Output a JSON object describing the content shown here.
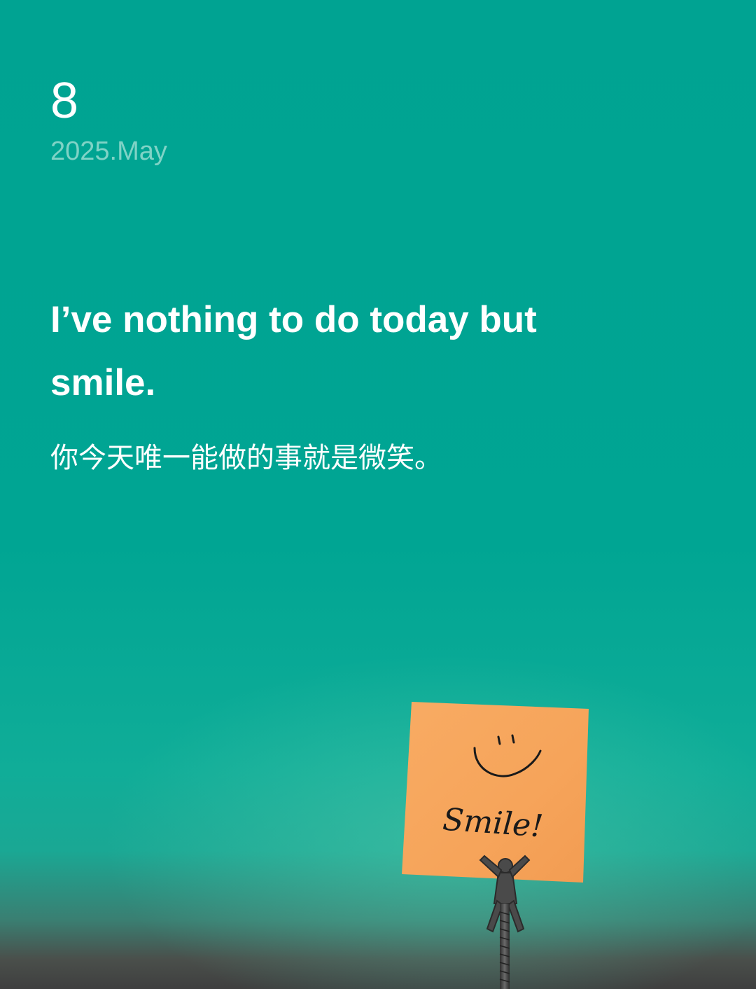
{
  "date": {
    "day": "8",
    "year_month": "2025.May"
  },
  "quote": {
    "english": "I’ve nothing to do today but smile.",
    "chinese": "你今天唯一能做的事就是微笑。"
  },
  "note": {
    "handwritten_text": "Smile!"
  },
  "colors": {
    "background": "#00a392",
    "note": "#f7a65c",
    "date_secondary": "#7fd3c6"
  }
}
